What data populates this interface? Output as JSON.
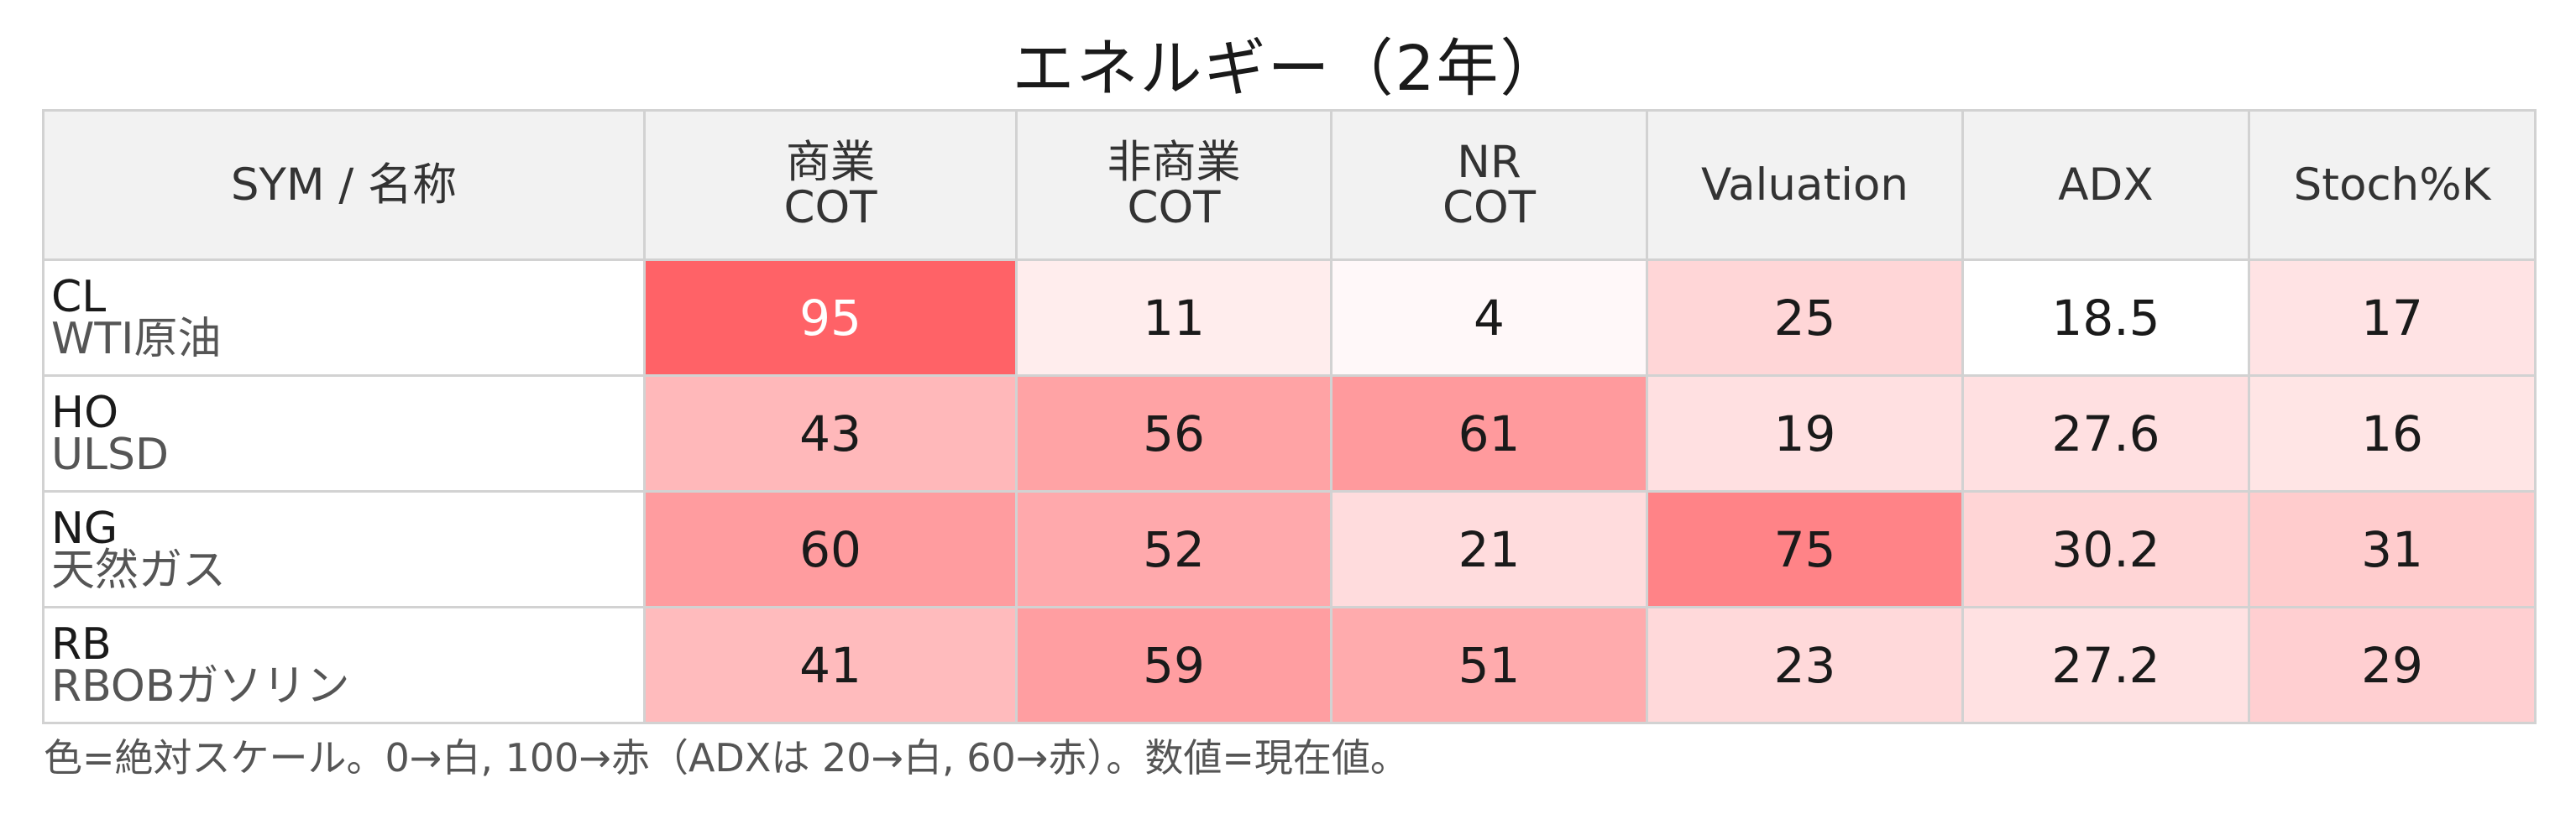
{
  "title": "エネルギー（2年）",
  "footnote": "色=絶対スケール。0→白, 100→赤（ADXは 20→白, 60→赤）。数値=現在値。",
  "chart_data": {
    "type": "heatmap",
    "title": "エネルギー（2年）",
    "row_header_label": "SYM / 名称",
    "columns": [
      {
        "key": "comm_cot",
        "lines": [
          "商業",
          "COT"
        ],
        "min": 0,
        "max": 100
      },
      {
        "key": "noncomm_cot",
        "lines": [
          "非商業",
          "COT"
        ],
        "min": 0,
        "max": 100
      },
      {
        "key": "nr_cot",
        "lines": [
          "NR",
          "COT"
        ],
        "min": 0,
        "max": 100
      },
      {
        "key": "valuation",
        "lines": [
          "Valuation"
        ],
        "min": 0,
        "max": 100
      },
      {
        "key": "adx",
        "lines": [
          "ADX"
        ],
        "min": 20,
        "max": 60
      },
      {
        "key": "stoch_k",
        "lines": [
          "Stoch%K"
        ],
        "min": 0,
        "max": 100
      }
    ],
    "rows": [
      {
        "sym": "CL",
        "name": "WTI原油",
        "values": [
          95,
          11,
          4,
          25,
          18.5,
          17
        ],
        "labels": [
          "95",
          "11",
          "4",
          "25",
          "18.5",
          "17"
        ]
      },
      {
        "sym": "HO",
        "name": "ULSD",
        "values": [
          43,
          56,
          61,
          19,
          27.6,
          16
        ],
        "labels": [
          "43",
          "56",
          "61",
          "19",
          "27.6",
          "16"
        ]
      },
      {
        "sym": "NG",
        "name": "天然ガス",
        "values": [
          60,
          52,
          21,
          75,
          30.2,
          31
        ],
        "labels": [
          "60",
          "52",
          "21",
          "75",
          "30.2",
          "31"
        ]
      },
      {
        "sym": "RB",
        "name": "RBOBガソリン",
        "values": [
          41,
          59,
          51,
          23,
          27.2,
          29
        ],
        "labels": [
          "41",
          "59",
          "51",
          "23",
          "27.2",
          "29"
        ]
      }
    ],
    "color_scale": {
      "low": "#ffffff",
      "high": "#ff5a5f"
    }
  }
}
